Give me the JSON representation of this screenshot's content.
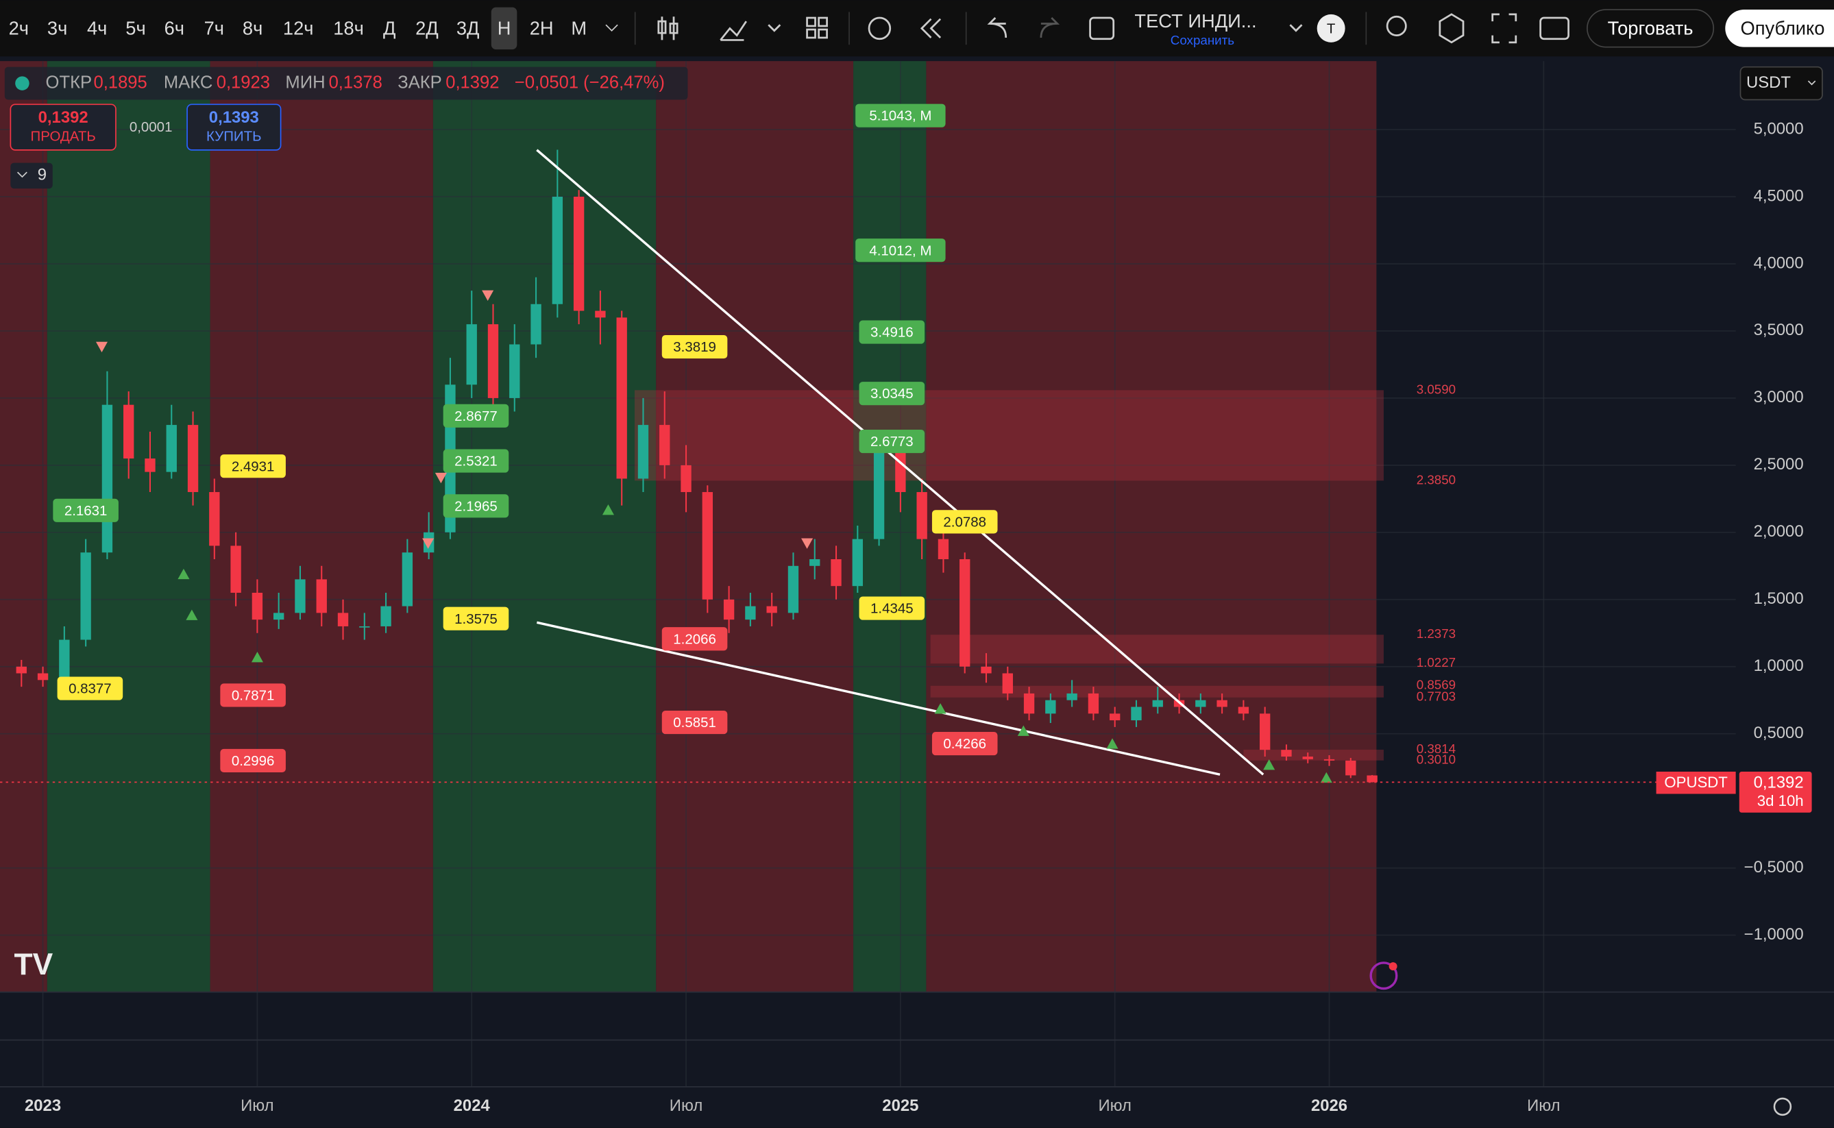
{
  "toolbar": {
    "intervals": [
      "2ч",
      "3ч",
      "4ч",
      "5ч",
      "6ч",
      "7ч",
      "8ч",
      "12ч",
      "18ч",
      "Д",
      "2Д",
      "3Д",
      "Н",
      "2Н",
      "М"
    ],
    "indicator_name": "ТЕСТ ИНДИ...",
    "save": "Сохранить",
    "avatar": "Т",
    "trade": "Торговать",
    "publish": "Опублико"
  },
  "legend": {
    "open_label": "ОТКР",
    "open": "0,1895",
    "high_label": "МАКС",
    "high": "0,1923",
    "low_label": "МИН",
    "low": "0,1378",
    "close_label": "ЗАКР",
    "close": "0,1392",
    "change": "−0,0501 (−26,47%)"
  },
  "order_panel": {
    "sell_price": "0,1392",
    "sell": "ПРОДАТЬ",
    "spread": "0,0001",
    "buy_price": "0,1393",
    "buy": "КУПИТЬ",
    "indicators_count": "9"
  },
  "currency": "USDT",
  "chart_data": {
    "type": "candlestick",
    "symbol": "OPUSDT",
    "x": [
      2022.95,
      2023.0,
      2023.05,
      2023.1,
      2023.15,
      2023.2,
      2023.25,
      2023.3,
      2023.35,
      2023.4,
      2023.45,
      2023.5,
      2023.55,
      2023.6,
      2023.65,
      2023.7,
      2023.75,
      2023.8,
      2023.85,
      2023.9,
      2023.95,
      2024.0,
      2024.05,
      2024.1,
      2024.15,
      2024.2,
      2024.25,
      2024.3,
      2024.35,
      2024.4,
      2024.45,
      2024.5,
      2024.55,
      2024.6,
      2024.65,
      2024.7,
      2024.75,
      2024.8,
      2024.85,
      2024.9,
      2024.95,
      2025.0,
      2025.05,
      2025.1,
      2025.15,
      2025.2,
      2025.25,
      2025.3,
      2025.35,
      2025.4,
      2025.45,
      2025.5,
      2025.55,
      2025.6,
      2025.65,
      2025.7,
      2025.75,
      2025.8,
      2025.85,
      2025.9,
      2025.95,
      2026.0,
      2026.05,
      2026.1
    ],
    "open": [
      1.0,
      0.95,
      0.9,
      1.2,
      1.85,
      2.95,
      2.55,
      2.45,
      2.8,
      2.3,
      1.9,
      1.55,
      1.35,
      1.4,
      1.65,
      1.4,
      1.3,
      1.3,
      1.45,
      1.85,
      2.0,
      3.1,
      3.55,
      3.0,
      3.4,
      3.7,
      4.5,
      3.65,
      3.6,
      2.4,
      2.8,
      2.5,
      2.3,
      1.5,
      1.35,
      1.45,
      1.4,
      1.75,
      1.8,
      1.6,
      1.95,
      2.6,
      2.3,
      1.95,
      1.8,
      1.0,
      0.95,
      0.8,
      0.65,
      0.75,
      0.8,
      0.65,
      0.6,
      0.7,
      0.75,
      0.7,
      0.75,
      0.7,
      0.65,
      0.38,
      0.33,
      0.31,
      0.3,
      0.1895
    ],
    "high": [
      1.05,
      1.0,
      1.3,
      1.95,
      3.2,
      3.05,
      2.75,
      2.95,
      2.9,
      2.4,
      2.0,
      1.65,
      1.55,
      1.75,
      1.75,
      1.5,
      1.4,
      1.55,
      1.95,
      2.15,
      3.3,
      3.8,
      3.7,
      3.55,
      3.9,
      4.85,
      4.55,
      3.8,
      3.65,
      3.0,
      3.05,
      2.65,
      2.35,
      1.6,
      1.55,
      1.55,
      1.85,
      1.95,
      1.9,
      2.05,
      2.75,
      2.7,
      2.4,
      2.05,
      1.85,
      1.1,
      1.0,
      0.85,
      0.8,
      0.9,
      0.85,
      0.7,
      0.75,
      0.85,
      0.8,
      0.8,
      0.8,
      0.75,
      0.7,
      0.42,
      0.36,
      0.34,
      0.32,
      0.1923
    ],
    "low": [
      0.85,
      0.85,
      0.88,
      1.15,
      1.8,
      2.4,
      2.3,
      2.4,
      2.2,
      1.8,
      1.45,
      1.25,
      1.28,
      1.35,
      1.3,
      1.2,
      1.2,
      1.25,
      1.4,
      1.8,
      1.95,
      3.0,
      2.85,
      2.9,
      3.3,
      3.6,
      3.55,
      3.4,
      2.2,
      2.3,
      2.4,
      2.15,
      1.4,
      1.25,
      1.3,
      1.3,
      1.35,
      1.65,
      1.5,
      1.55,
      1.9,
      2.15,
      1.8,
      1.7,
      0.95,
      0.88,
      0.75,
      0.6,
      0.58,
      0.7,
      0.6,
      0.55,
      0.55,
      0.65,
      0.65,
      0.65,
      0.65,
      0.6,
      0.33,
      0.3,
      0.28,
      0.26,
      0.17,
      0.1378
    ],
    "close": [
      0.95,
      0.9,
      1.2,
      1.85,
      2.95,
      2.55,
      2.45,
      2.8,
      2.3,
      1.9,
      1.55,
      1.35,
      1.4,
      1.65,
      1.4,
      1.3,
      1.3,
      1.45,
      1.85,
      2.0,
      3.1,
      3.55,
      3.0,
      3.4,
      3.7,
      4.5,
      3.65,
      3.6,
      2.4,
      2.8,
      2.5,
      2.3,
      1.5,
      1.35,
      1.45,
      1.4,
      1.75,
      1.8,
      1.6,
      1.95,
      2.6,
      2.3,
      1.95,
      1.8,
      1.0,
      0.95,
      0.8,
      0.65,
      0.75,
      0.8,
      0.65,
      0.6,
      0.7,
      0.75,
      0.7,
      0.75,
      0.7,
      0.65,
      0.38,
      0.33,
      0.31,
      0.3,
      0.19,
      0.1392
    ],
    "up_color": "#22ab94",
    "down_color": "#f23645",
    "xlim": [
      2022.9,
      2026.948
    ],
    "xticks": [
      2023,
      {
        "value": 2023.5,
        "label": "Июл"
      },
      2024,
      {
        "value": 2024.5,
        "label": "Июл"
      },
      2025,
      {
        "value": 2025.5,
        "label": "Июл"
      },
      2026,
      {
        "value": 2026.5,
        "label": "Июл"
      }
    ],
    "ylim": [
      -1.424,
      5.51
    ],
    "yticks": [
      {
        "value": -1,
        "label": "−1,0000"
      },
      {
        "value": -0.5,
        "label": "−0,5000"
      },
      {
        "value": 0.5,
        "label": "0,5000"
      },
      {
        "value": 1,
        "label": "1,0000"
      },
      {
        "value": 1.5,
        "label": "1,5000"
      },
      {
        "value": 2,
        "label": "2,0000"
      },
      {
        "value": 2.5,
        "label": "2,5000"
      },
      {
        "value": 3,
        "label": "3,0000"
      },
      {
        "value": 3.5,
        "label": "3,5000"
      },
      {
        "value": 4,
        "label": "4,0000"
      },
      {
        "value": 4.5,
        "label": "4,5000"
      },
      {
        "value": 5,
        "label": "5,0000"
      }
    ],
    "grid": true,
    "last_price": {
      "value": 0.1392,
      "label": "0,1392"
    },
    "countdown": "3d 10h",
    "zones": [
      {
        "start": 2022.9,
        "end": 2023.01,
        "color": "#5a2028"
      },
      {
        "start": 2023.01,
        "end": 2023.39,
        "color": "#1d4a30"
      },
      {
        "start": 2023.39,
        "end": 2023.91,
        "color": "#5a2028"
      },
      {
        "start": 2023.91,
        "end": 2024.43,
        "color": "#1d4a30"
      },
      {
        "start": 2024.43,
        "end": 2024.89,
        "color": "#5a2028"
      },
      {
        "start": 2024.89,
        "end": 2025.06,
        "color": "#1d4a30"
      },
      {
        "start": 2025.06,
        "end": 2026.11,
        "color": "#5a2028"
      }
    ],
    "annotations": [
      {
        "x": 2025.0,
        "value": 5.1043,
        "label": "5.1043, M",
        "color": "#4caf50"
      },
      {
        "x": 2025.0,
        "value": 4.1012,
        "label": "4.1012, M",
        "color": "#4caf50"
      },
      {
        "x": 2024.98,
        "value": 3.4916,
        "label": "3.4916",
        "color": "#4caf50"
      },
      {
        "x": 2024.98,
        "value": 3.0345,
        "label": "3.0345",
        "color": "#4caf50"
      },
      {
        "x": 2024.98,
        "value": 2.6773,
        "label": "2.6773",
        "color": "#4caf50"
      },
      {
        "x": 2024.01,
        "value": 2.8677,
        "label": "2.8677",
        "color": "#4caf50"
      },
      {
        "x": 2024.01,
        "value": 2.5321,
        "label": "2.5321",
        "color": "#4caf50"
      },
      {
        "x": 2024.01,
        "value": 2.1965,
        "label": "2.1965",
        "color": "#4caf50"
      },
      {
        "x": 2023.1,
        "value": 2.1631,
        "label": "2.1631",
        "color": "#4caf50"
      },
      {
        "x": 2024.52,
        "value": 3.3819,
        "label": "3.3819",
        "color": "#ffeb3b"
      },
      {
        "x": 2023.49,
        "value": 2.4931,
        "label": "2.4931",
        "color": "#ffeb3b"
      },
      {
        "x": 2025.15,
        "value": 2.0788,
        "label": "2.0788",
        "color": "#ffeb3b"
      },
      {
        "x": 2024.98,
        "value": 1.4345,
        "label": "1.4345",
        "color": "#ffeb3b"
      },
      {
        "x": 2024.01,
        "value": 1.3575,
        "label": "1.3575",
        "color": "#ffeb3b"
      },
      {
        "x": 2023.11,
        "value": 0.8377,
        "label": "0.8377",
        "color": "#ffeb3b"
      },
      {
        "x": 2024.52,
        "value": 1.2066,
        "label": "1.2066",
        "color": "#f0464e"
      },
      {
        "x": 2024.52,
        "value": 0.5851,
        "label": "0.5851",
        "color": "#f0464e"
      },
      {
        "x": 2023.49,
        "value": 0.7871,
        "label": "0.7871",
        "color": "#f0464e"
      },
      {
        "x": 2023.49,
        "value": 0.2996,
        "label": "0.2996",
        "color": "#f0464e"
      },
      {
        "x": 2025.15,
        "value": 0.4266,
        "label": "0.4266",
        "color": "#f0464e"
      }
    ],
    "levels": [
      {
        "value": 3.059,
        "label": "3.0590"
      },
      {
        "value": 2.385,
        "label": "2.3850"
      },
      {
        "value": 1.2373,
        "label": "1.2373"
      },
      {
        "value": 1.0227,
        "label": "1.0227"
      },
      {
        "value": 0.8569,
        "label": "0.8569"
      },
      {
        "value": 0.7703,
        "label": "0.7703"
      },
      {
        "value": 0.3814,
        "label": "0.3814"
      },
      {
        "value": 0.301,
        "label": "0.3010"
      }
    ]
  }
}
